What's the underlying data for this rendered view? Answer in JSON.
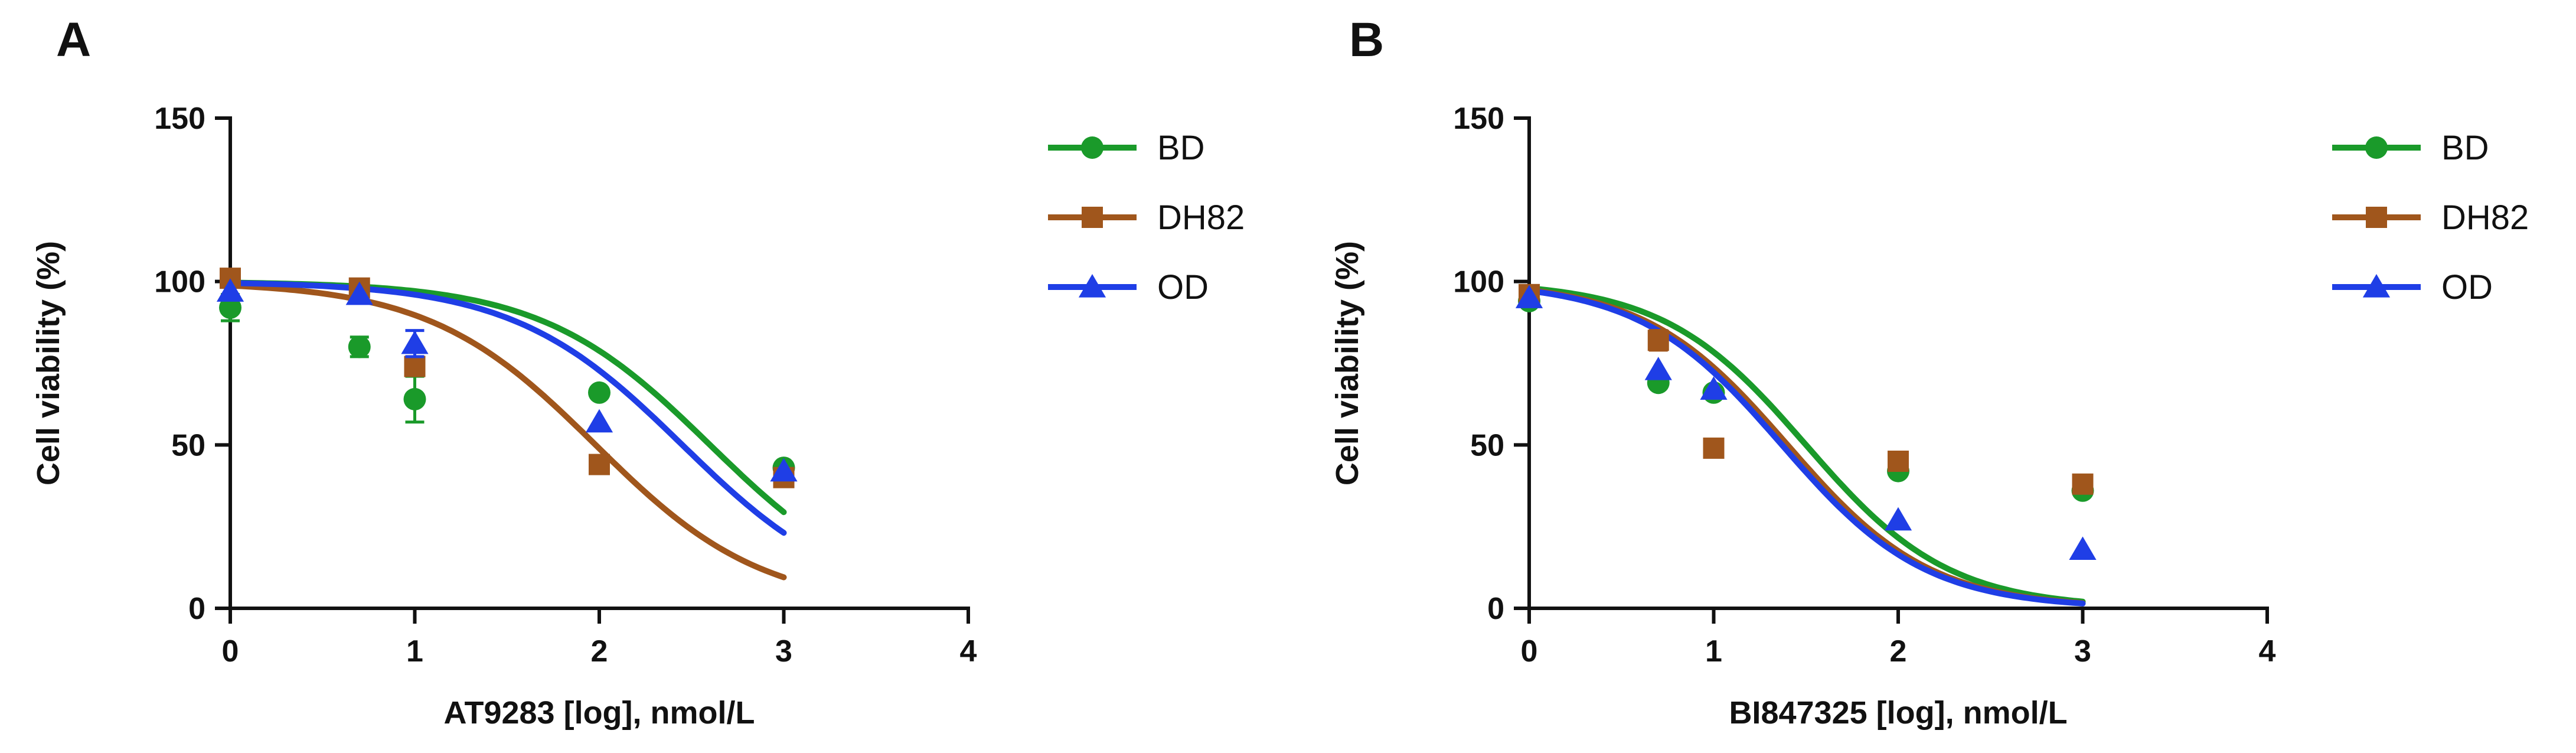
{
  "chart_data": [
    {
      "type": "scatter",
      "panel_label": "A",
      "title": "",
      "xlabel": "AT9283 [log], nmol/L",
      "ylabel": "Cell  viability (%)",
      "xlim": [
        0,
        4
      ],
      "ylim": [
        0,
        150
      ],
      "xticks": [
        "0",
        "1",
        "2",
        "3",
        "4"
      ],
      "yticks": [
        "0",
        "50",
        "100",
        "150"
      ],
      "grid": false,
      "legend_position": "right",
      "series": [
        {
          "name": "BD",
          "color": "#1a9a2a",
          "marker": "circle",
          "x": [
            0,
            0.7,
            1,
            2,
            3
          ],
          "y": [
            92,
            80,
            64,
            66,
            43
          ],
          "err": [
            4,
            3,
            7,
            1,
            1
          ],
          "fit": {
            "top": 100,
            "bottom": 0,
            "logIC50": 2.6,
            "hill": 0.95
          }
        },
        {
          "name": "DH82",
          "color": "#a0561c",
          "marker": "square",
          "x": [
            0,
            0.7,
            1,
            2,
            3
          ],
          "y": [
            101,
            98,
            74,
            44,
            40
          ],
          "err": [
            1,
            1,
            1,
            1,
            1
          ],
          "fit": {
            "top": 100,
            "bottom": 0,
            "logIC50": 1.98,
            "hill": 0.96
          }
        },
        {
          "name": "OD",
          "color": "#1f3ee6",
          "marker": "triangle",
          "x": [
            0,
            0.7,
            1,
            2,
            3
          ],
          "y": [
            97,
            96,
            81,
            57,
            42
          ],
          "err": [
            1,
            1,
            4,
            1,
            1
          ],
          "fit": {
            "top": 100,
            "bottom": 0,
            "logIC50": 2.45,
            "hill": 0.95
          }
        }
      ]
    },
    {
      "type": "scatter",
      "panel_label": "B",
      "title": "",
      "xlabel": "BI847325 [log], nmol/L",
      "ylabel": "Cell  viability (%)",
      "xlim": [
        0,
        4
      ],
      "ylim": [
        0,
        150
      ],
      "xticks": [
        "0",
        "1",
        "2",
        "3",
        "4"
      ],
      "yticks": [
        "0",
        "50",
        "100",
        "150"
      ],
      "grid": false,
      "legend_position": "right",
      "series": [
        {
          "name": "BD",
          "color": "#1a9a2a",
          "marker": "circle",
          "x": [
            0,
            0.7,
            1,
            2,
            3
          ],
          "y": [
            94,
            69,
            66,
            42,
            36
          ],
          "err": [
            1,
            1,
            1,
            1,
            1
          ],
          "fit": {
            "top": 100,
            "bottom": 0,
            "logIC50": 1.5,
            "hill": 1.12
          }
        },
        {
          "name": "DH82",
          "color": "#a0561c",
          "marker": "square",
          "x": [
            0,
            0.7,
            1,
            2,
            3
          ],
          "y": [
            96,
            82,
            49,
            45,
            38
          ],
          "err": [
            1,
            3,
            1,
            1,
            1
          ],
          "fit": {
            "top": 100,
            "bottom": 0,
            "logIC50": 1.4,
            "hill": 1.12
          }
        },
        {
          "name": "OD",
          "color": "#1f3ee6",
          "marker": "triangle",
          "x": [
            0,
            0.7,
            1,
            2,
            3
          ],
          "y": [
            95,
            73,
            67,
            27,
            18
          ],
          "err": [
            1,
            1,
            1,
            1,
            1
          ],
          "fit": {
            "top": 100,
            "bottom": 0,
            "logIC50": 1.37,
            "hill": 1.12
          }
        }
      ]
    }
  ]
}
